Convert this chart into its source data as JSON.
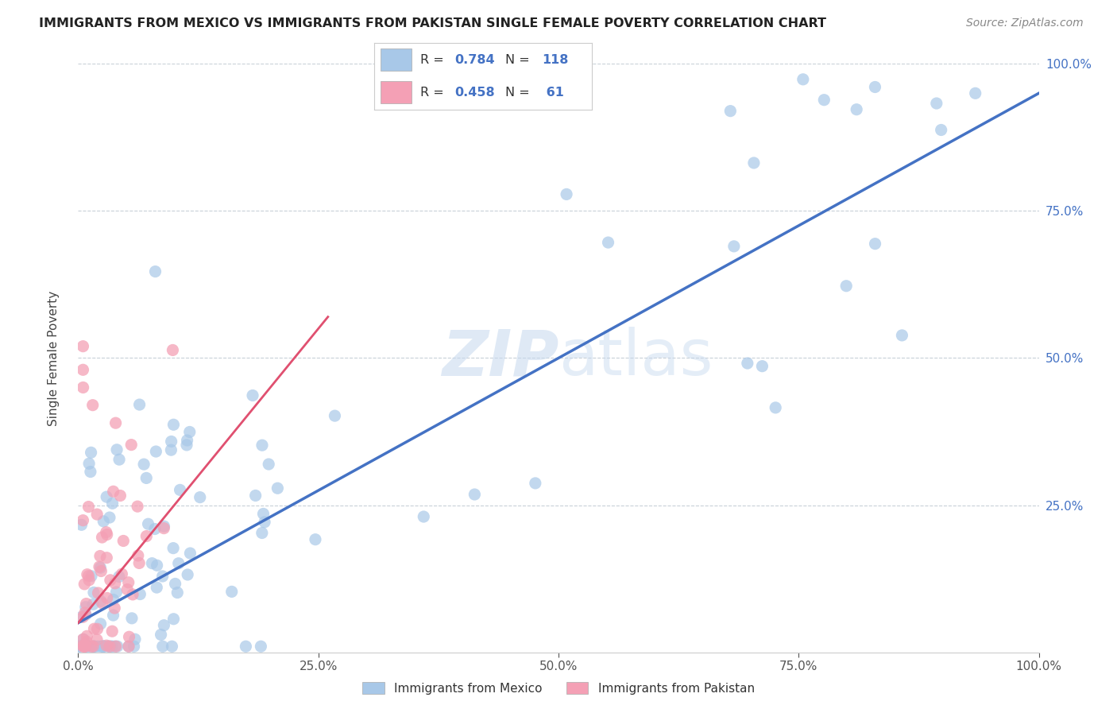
{
  "title": "IMMIGRANTS FROM MEXICO VS IMMIGRANTS FROM PAKISTAN SINGLE FEMALE POVERTY CORRELATION CHART",
  "source": "Source: ZipAtlas.com",
  "ylabel": "Single Female Poverty",
  "xlim": [
    0,
    1.0
  ],
  "ylim": [
    0,
    1.0
  ],
  "xtick_labels": [
    "0.0%",
    "25.0%",
    "50.0%",
    "75.0%",
    "100.0%"
  ],
  "xtick_values": [
    0.0,
    0.25,
    0.5,
    0.75,
    1.0
  ],
  "ytick_labels": [
    "25.0%",
    "50.0%",
    "75.0%",
    "100.0%"
  ],
  "ytick_values": [
    0.25,
    0.5,
    0.75,
    1.0
  ],
  "mexico_color": "#a8c8e8",
  "pakistan_color": "#f4a0b5",
  "mexico_line_color": "#4472c4",
  "pakistan_line_color": "#e05070",
  "mexico_R": 0.784,
  "mexico_N": 118,
  "pakistan_R": 0.458,
  "pakistan_N": 61,
  "legend_label_mexico": "Immigrants from Mexico",
  "legend_label_pakistan": "Immigrants from Pakistan",
  "watermark_zip": "ZIP",
  "watermark_atlas": "atlas",
  "title_color": "#222222",
  "source_color": "#888888",
  "ytick_color": "#4472c4",
  "xtick_color": "#555555",
  "grid_color": "#c8d0d8",
  "mexico_line_intercept": 0.05,
  "mexico_line_slope": 0.9,
  "pakistan_line_intercept": 0.05,
  "pakistan_line_slope": 2.0,
  "pakistan_line_xmax": 0.26
}
